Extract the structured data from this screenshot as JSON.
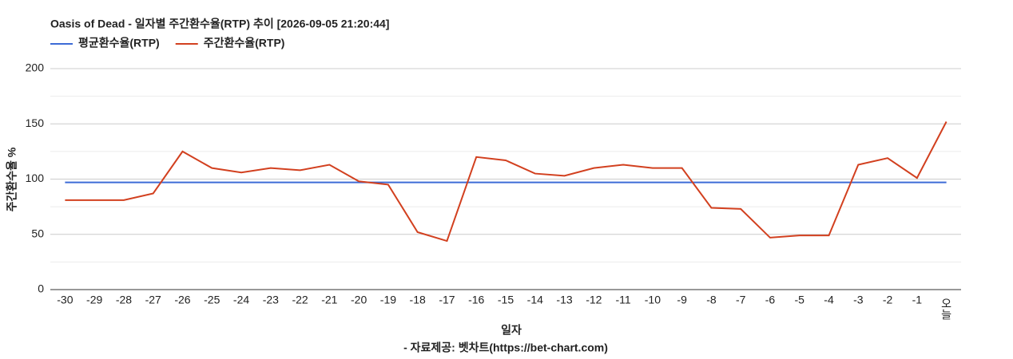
{
  "chart_data": {
    "type": "line",
    "title": "Oasis of Dead - 일자별 주간환수율(RTP) 추이 [2026-09-05 21:20:44]",
    "x_label": "일자",
    "y_label": "주간환수율 %",
    "source": "- 자료제공: 벳차트(https://bet-chart.com)",
    "categories": [
      "-30",
      "-29",
      "-28",
      "-27",
      "-26",
      "-25",
      "-24",
      "-23",
      "-22",
      "-21",
      "-20",
      "-19",
      "-18",
      "-17",
      "-16",
      "-15",
      "-14",
      "-13",
      "-12",
      "-11",
      "-10",
      "-9",
      "-8",
      "-7",
      "-6",
      "-5",
      "-4",
      "-3",
      "-2",
      "-1",
      "오늘"
    ],
    "series": [
      {
        "name": "평균환수율(RTP)",
        "color": "#3c6bd6",
        "values": [
          97,
          97,
          97,
          97,
          97,
          97,
          97,
          97,
          97,
          97,
          97,
          97,
          97,
          97,
          97,
          97,
          97,
          97,
          97,
          97,
          97,
          97,
          97,
          97,
          97,
          97,
          97,
          97,
          97,
          97,
          97
        ]
      },
      {
        "name": "주간환수율(RTP)",
        "color": "#d2401f",
        "values": [
          81,
          81,
          81,
          87,
          125,
          110,
          106,
          110,
          108,
          113,
          98,
          95,
          52,
          44,
          120,
          117,
          105,
          103,
          110,
          113,
          110,
          110,
          74,
          73,
          47,
          49,
          49,
          113,
          119,
          101,
          152
        ]
      }
    ],
    "ylim": [
      0,
      200
    ],
    "yticks": [
      0,
      50,
      100,
      150,
      200
    ],
    "minor_grid": [
      25,
      75,
      125,
      175
    ],
    "grid": true
  }
}
